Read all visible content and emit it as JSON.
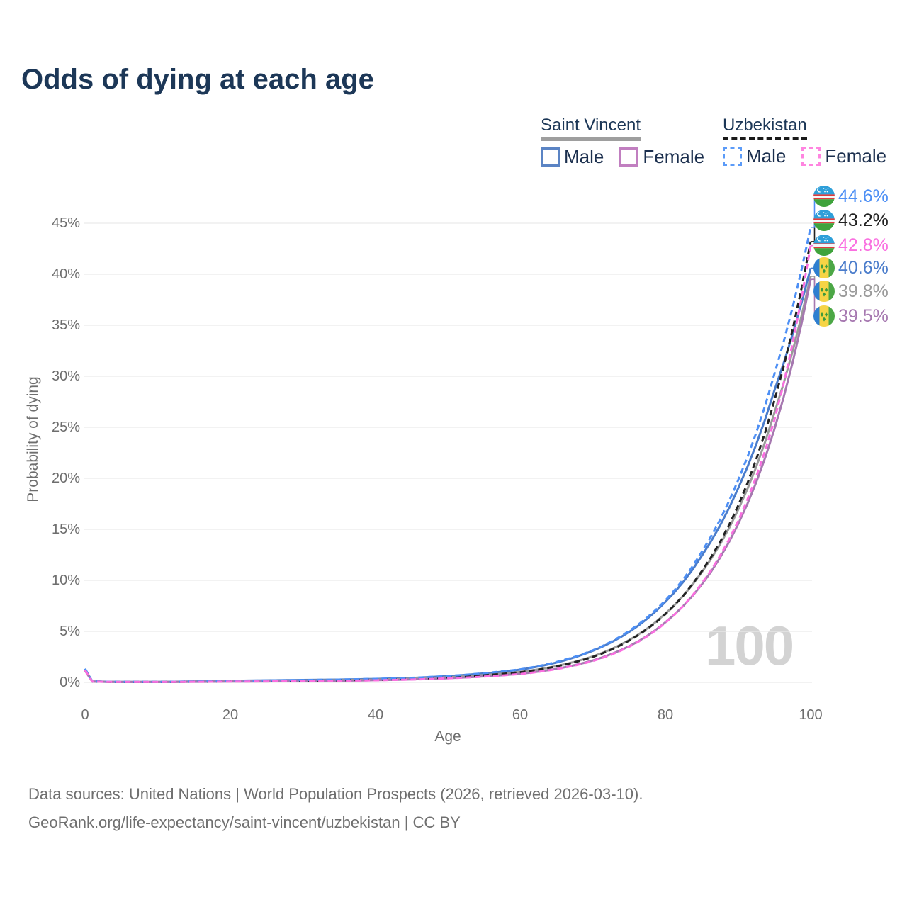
{
  "title": "Odds of dying at each age",
  "legend": {
    "groups": [
      {
        "country": "Saint Vincent",
        "line_style": "solid",
        "underline_color": "#9e9e9e",
        "items": [
          {
            "label": "Male",
            "color": "#5b84c4",
            "dashed": false
          },
          {
            "label": "Female",
            "color": "#c17fc0",
            "dashed": false
          }
        ]
      },
      {
        "country": "Uzbekistan",
        "line_style": "dashed",
        "underline_color": "#1a1a1a",
        "items": [
          {
            "label": "Male",
            "color": "#5b9bf8",
            "dashed": true
          },
          {
            "label": "Female",
            "color": "#ff85e0",
            "dashed": true
          }
        ]
      }
    ]
  },
  "axes": {
    "y": {
      "title": "Probability of dying",
      "ticks": [
        "45%",
        "40%",
        "35%",
        "30%",
        "25%",
        "20%",
        "15%",
        "10%",
        "5%",
        "0%"
      ]
    },
    "x": {
      "title": "Age",
      "ticks": [
        "0",
        "20",
        "40",
        "60",
        "80",
        "100"
      ]
    }
  },
  "watermark": "100",
  "end_labels": [
    {
      "country": "Uzbekistan",
      "value": "44.6%"
    },
    {
      "country": "Uzbekistan",
      "value": "43.2%"
    },
    {
      "country": "Uzbekistan",
      "value": "42.8%"
    },
    {
      "country": "Saint Vincent",
      "value": "40.6%"
    },
    {
      "country": "Saint Vincent",
      "value": "39.8%"
    },
    {
      "country": "Saint Vincent",
      "value": "39.5%"
    }
  ],
  "footer": {
    "line1": "Data sources: United Nations | World Population Prospects (2026, retrieved 2026-03-10).",
    "line2": "GeoRank.org/life-expectancy/saint-vincent/uzbekistan | CC BY"
  },
  "chart_data": {
    "type": "line",
    "title": "Odds of dying at each age",
    "xlabel": "Age",
    "ylabel": "Probability of dying",
    "xlim": [
      0,
      100
    ],
    "ylim": [
      0,
      47
    ],
    "grid": "horizontal",
    "y_ticks_pct": [
      0,
      5,
      10,
      15,
      20,
      25,
      30,
      35,
      40,
      45
    ],
    "x_ticks": [
      0,
      20,
      40,
      60,
      80,
      100
    ],
    "x": [
      0,
      1,
      5,
      10,
      15,
      20,
      25,
      30,
      35,
      40,
      45,
      50,
      55,
      60,
      65,
      70,
      75,
      80,
      85,
      90,
      95,
      100
    ],
    "series": [
      {
        "name": "Saint Vincent Male",
        "country": "Saint Vincent",
        "sex": "Male",
        "color": "#4a7ccb",
        "dash": "solid",
        "row": 3,
        "end_value_pct": 40.6,
        "values_pct": [
          1.3,
          0.1,
          0.05,
          0.05,
          0.1,
          0.16,
          0.2,
          0.24,
          0.28,
          0.34,
          0.44,
          0.62,
          0.88,
          1.25,
          1.95,
          3.1,
          4.95,
          7.9,
          12.4,
          19.0,
          28.6,
          40.6
        ]
      },
      {
        "name": "Saint Vincent Both sexes",
        "country": "Saint Vincent",
        "sex": "Both",
        "color": "#9a9a9a",
        "dash": "solid",
        "row": 4,
        "end_value_pct": 39.8,
        "values_pct": [
          1.25,
          0.09,
          0.04,
          0.04,
          0.08,
          0.12,
          0.15,
          0.18,
          0.22,
          0.28,
          0.36,
          0.5,
          0.72,
          1.02,
          1.6,
          2.55,
          4.15,
          6.75,
          10.8,
          16.9,
          26.4,
          39.8
        ]
      },
      {
        "name": "Saint Vincent Female",
        "country": "Saint Vincent",
        "sex": "Female",
        "color": "#a678b0",
        "dash": "solid",
        "row": 5,
        "end_value_pct": 39.5,
        "values_pct": [
          1.15,
          0.08,
          0.04,
          0.04,
          0.06,
          0.08,
          0.1,
          0.13,
          0.16,
          0.22,
          0.29,
          0.41,
          0.59,
          0.84,
          1.33,
          2.15,
          3.55,
          5.9,
          9.6,
          15.5,
          24.8,
          39.5
        ]
      },
      {
        "name": "Uzbekistan Both sexes",
        "country": "Uzbekistan",
        "sex": "Both",
        "color": "#222222",
        "dash": "dashed",
        "row": 1,
        "end_value_pct": 43.2,
        "values_pct": [
          1.3,
          0.09,
          0.04,
          0.04,
          0.07,
          0.11,
          0.14,
          0.17,
          0.21,
          0.27,
          0.35,
          0.49,
          0.7,
          1.0,
          1.57,
          2.5,
          4.1,
          6.7,
          10.9,
          17.3,
          27.6,
          43.2
        ]
      },
      {
        "name": "Uzbekistan Male",
        "country": "Uzbekistan",
        "sex": "Male",
        "color": "#4d8ff5",
        "dash": "dashed",
        "row": 0,
        "end_value_pct": 44.6,
        "values_pct": [
          1.35,
          0.1,
          0.05,
          0.05,
          0.09,
          0.15,
          0.19,
          0.23,
          0.28,
          0.35,
          0.45,
          0.63,
          0.9,
          1.28,
          2.0,
          3.15,
          5.05,
          8.05,
          12.8,
          19.8,
          30.2,
          44.6
        ]
      },
      {
        "name": "Uzbekistan Female",
        "country": "Uzbekistan",
        "sex": "Female",
        "color": "#fa6fe0",
        "dash": "dashed",
        "row": 2,
        "end_value_pct": 42.8,
        "values_pct": [
          1.2,
          0.08,
          0.04,
          0.04,
          0.06,
          0.08,
          0.1,
          0.12,
          0.15,
          0.21,
          0.28,
          0.4,
          0.57,
          0.82,
          1.3,
          2.1,
          3.5,
          5.85,
          9.7,
          15.8,
          25.7,
          42.8
        ]
      }
    ]
  }
}
